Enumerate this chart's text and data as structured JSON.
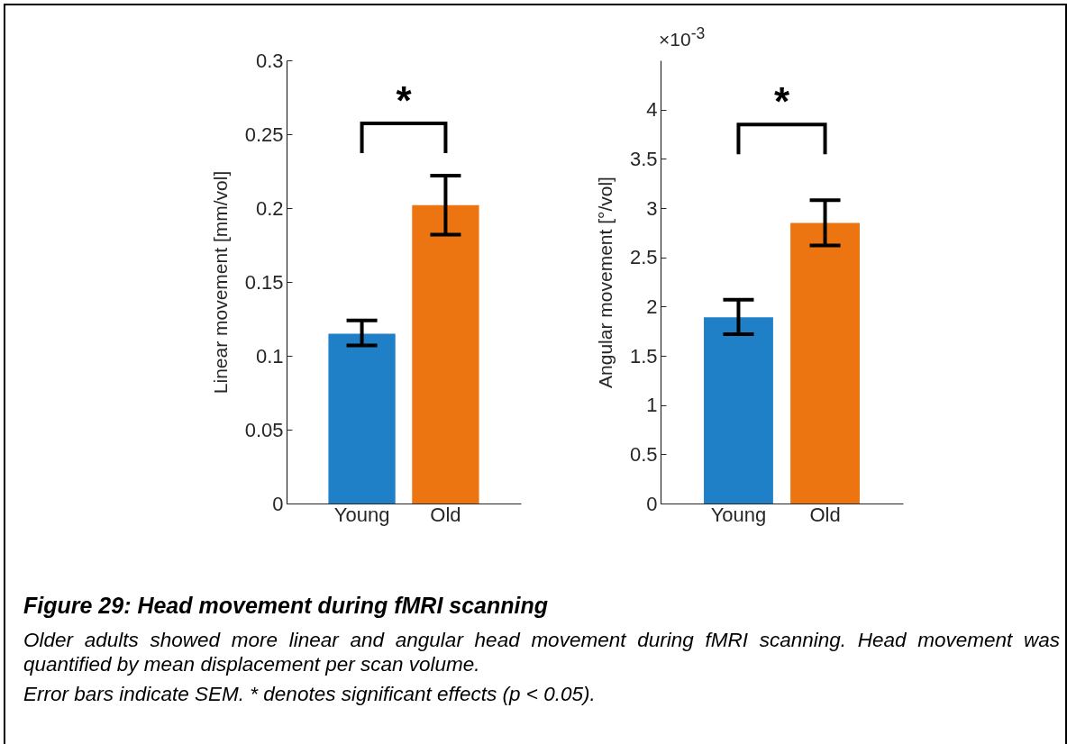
{
  "chart_data": [
    {
      "type": "bar",
      "title": "Figure 29: Head movement during fMRI scanning",
      "annotations": [
        "*",
        "Older adults showed more linear and angular head movement during fMRI scanning. Head movement was quantified by mean displacement per scan volume.",
        "Error bars indicate SEM. * denotes significant effects (p < 0.05)."
      ],
      "categories": [
        "Young",
        "Old"
      ],
      "values": [
        0.115,
        0.202
      ],
      "errors": [
        [
          0.107,
          0.124
        ],
        [
          0.182,
          0.222
        ]
      ],
      "colors": [
        "#1f80c8",
        "#ec7411"
      ],
      "ylabel": "Linear movement [mm/vol]",
      "ylim": [
        0,
        0.3
      ],
      "yticks": [
        0,
        0.05,
        0.1,
        0.15,
        0.2,
        0.25,
        0.3
      ]
    },
    {
      "type": "bar",
      "annotations": [
        "*",
        "×10$^{-3}$"
      ],
      "categories": [
        "Young",
        "Old"
      ],
      "values": [
        1.89,
        2.85
      ],
      "errors": [
        [
          1.72,
          2.07
        ],
        [
          2.62,
          3.08
        ]
      ],
      "colors": [
        "#1f80c8",
        "#ec7411"
      ],
      "ylabel": "Angular movement [°/vol]",
      "ylim": [
        0,
        4.5
      ],
      "yticks": [
        0,
        0.5,
        1,
        1.5,
        2,
        2.5,
        3,
        3.5,
        4
      ]
    }
  ]
}
